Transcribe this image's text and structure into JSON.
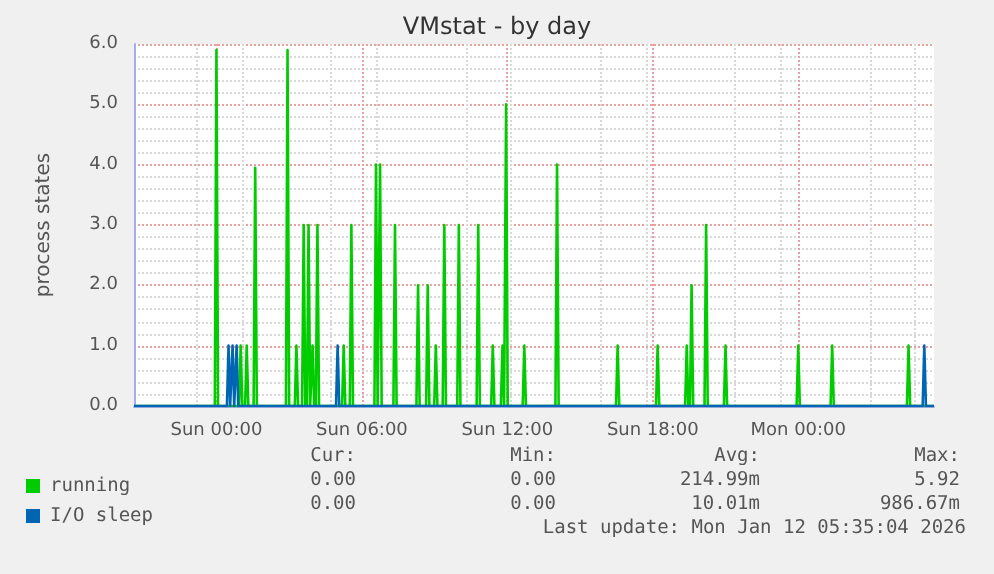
{
  "chart_data": {
    "type": "line",
    "title": "VMstat - by day",
    "ylabel": "process states",
    "xlim": [
      "2026-01-10T20:36",
      "2026-01-12T05:36"
    ],
    "xticks": [
      {
        "value": "2026-01-11T00:00",
        "label": "Sun 00:00"
      },
      {
        "value": "2026-01-11T06:00",
        "label": "Sun 06:00"
      },
      {
        "value": "2026-01-11T12:00",
        "label": "Sun 12:00"
      },
      {
        "value": "2026-01-11T18:00",
        "label": "Sun 18:00"
      },
      {
        "value": "2026-01-12T00:00",
        "label": "Mon 00:00"
      }
    ],
    "ylim": [
      0,
      6
    ],
    "yticks": [
      {
        "value": 0,
        "label": "0.0"
      },
      {
        "value": 1,
        "label": "1.0"
      },
      {
        "value": 2,
        "label": "2.0"
      },
      {
        "value": 3,
        "label": "3.0"
      },
      {
        "value": 4,
        "label": "4.0"
      },
      {
        "value": 5,
        "label": "5.0"
      },
      {
        "value": 6,
        "label": "6.0"
      }
    ],
    "grid": true,
    "legend": "bottom left",
    "marker": "none",
    "line_style": "solid",
    "series": [
      {
        "name": "running",
        "color": "#00cc00",
        "x": [
          "2026-01-10T20:36",
          "2026-01-10T23:56",
          "2026-01-11T00:00",
          "2026-01-11T00:04",
          "2026-01-11T00:56",
          "2026-01-11T01:00",
          "2026-01-11T01:04",
          "2026-01-11T01:11",
          "2026-01-11T01:15",
          "2026-01-11T01:19",
          "2026-01-11T01:32",
          "2026-01-11T01:36",
          "2026-01-11T01:40",
          "2026-01-11T02:52",
          "2026-01-11T02:56",
          "2026-01-11T03:00",
          "2026-01-11T03:14",
          "2026-01-11T03:18",
          "2026-01-11T03:22",
          "2026-01-11T03:32",
          "2026-01-11T03:36",
          "2026-01-11T03:40",
          "2026-01-11T03:44",
          "2026-01-11T03:48",
          "2026-01-11T03:52",
          "2026-01-11T03:54",
          "2026-01-11T03:58",
          "2026-01-11T04:02",
          "2026-01-11T04:06",
          "2026-01-11T04:10",
          "2026-01-11T04:14",
          "2026-01-11T05:11",
          "2026-01-11T05:15",
          "2026-01-11T05:19",
          "2026-01-11T05:30",
          "2026-01-11T05:34",
          "2026-01-11T05:38",
          "2026-01-11T06:31",
          "2026-01-11T06:35",
          "2026-01-11T06:39",
          "2026-01-11T06:41",
          "2026-01-11T06:45",
          "2026-01-11T06:49",
          "2026-01-11T07:18",
          "2026-01-11T07:22",
          "2026-01-11T07:26",
          "2026-01-11T08:15",
          "2026-01-11T08:19",
          "2026-01-11T08:23",
          "2026-01-11T08:39",
          "2026-01-11T08:43",
          "2026-01-11T08:47",
          "2026-01-11T08:59",
          "2026-01-11T09:03",
          "2026-01-11T09:07",
          "2026-01-11T09:20",
          "2026-01-11T09:24",
          "2026-01-11T09:28",
          "2026-01-11T09:56",
          "2026-01-11T10:00",
          "2026-01-11T10:04",
          "2026-01-11T10:44",
          "2026-01-11T10:48",
          "2026-01-11T10:52",
          "2026-01-11T11:20",
          "2026-01-11T11:24",
          "2026-01-11T11:28",
          "2026-01-11T11:44",
          "2026-01-11T11:48",
          "2026-01-11T11:52",
          "2026-01-11T11:53",
          "2026-01-11T11:57",
          "2026-01-11T12:01",
          "2026-01-11T12:38",
          "2026-01-11T12:42",
          "2026-01-11T12:46",
          "2026-01-11T13:59",
          "2026-01-11T14:03",
          "2026-01-11T14:07",
          "2026-01-11T16:29",
          "2026-01-11T16:33",
          "2026-01-11T16:37",
          "2026-01-11T18:08",
          "2026-01-11T18:12",
          "2026-01-11T18:16",
          "2026-01-11T19:20",
          "2026-01-11T19:24",
          "2026-01-11T19:28",
          "2026-01-11T19:32",
          "2026-01-11T19:36",
          "2026-01-11T19:40",
          "2026-01-11T20:08",
          "2026-01-11T20:12",
          "2026-01-11T20:16",
          "2026-01-11T20:56",
          "2026-01-11T21:00",
          "2026-01-11T21:04",
          "2026-01-11T23:56",
          "2026-01-12T00:00",
          "2026-01-12T00:04",
          "2026-01-12T01:20",
          "2026-01-12T01:24",
          "2026-01-12T01:28",
          "2026-01-12T04:29",
          "2026-01-12T04:33",
          "2026-01-12T04:37",
          "2026-01-12T05:36"
        ],
        "values": [
          0,
          0,
          5.9,
          0,
          0,
          1,
          0,
          0,
          1,
          0,
          0,
          3.95,
          0,
          0,
          5.9,
          0,
          0,
          1,
          0,
          0,
          3,
          0,
          0,
          3,
          0,
          0,
          1,
          0,
          0,
          3,
          0,
          0,
          1,
          0,
          0,
          3,
          0,
          0,
          4,
          0,
          0,
          4,
          0,
          0,
          3,
          0,
          0,
          2,
          0,
          0,
          2,
          0,
          0,
          1,
          0,
          0,
          3,
          0,
          0,
          3,
          0,
          0,
          3,
          0,
          0,
          1,
          0,
          0,
          1,
          0,
          0,
          5,
          0,
          0,
          1,
          0,
          0,
          4,
          0,
          0,
          1,
          0,
          0,
          1,
          0,
          0,
          1,
          0,
          0,
          2,
          0,
          0,
          3,
          0,
          0,
          1,
          0,
          0,
          1,
          0,
          0,
          1,
          0,
          0,
          1,
          0,
          0
        ]
      },
      {
        "name": "I/O sleep",
        "color": "#0066b3",
        "x": [
          "2026-01-10T20:36",
          "2026-01-11T00:26",
          "2026-01-11T00:30",
          "2026-01-11T00:34",
          "2026-01-11T00:36",
          "2026-01-11T00:40",
          "2026-01-11T00:44",
          "2026-01-11T00:46",
          "2026-01-11T00:50",
          "2026-01-11T00:54",
          "2026-01-11T04:56",
          "2026-01-11T05:00",
          "2026-01-11T05:04",
          "2026-01-12T05:08",
          "2026-01-12T05:12",
          "2026-01-12T05:16",
          "2026-01-12T05:36"
        ],
        "values": [
          0,
          0,
          1,
          0,
          0,
          1,
          0,
          0,
          1,
          0,
          0,
          1,
          0,
          0,
          1,
          0,
          0
        ]
      }
    ],
    "annotations": [
      "Cur:",
      "Min:",
      "Avg:",
      "Max:",
      "0.00",
      "0.00",
      "214.99m",
      "5.92",
      "0.00",
      "0.00",
      "10.01m",
      "986.67m",
      "Last update: Mon Jan 12 05:35:04 2026"
    ]
  }
}
